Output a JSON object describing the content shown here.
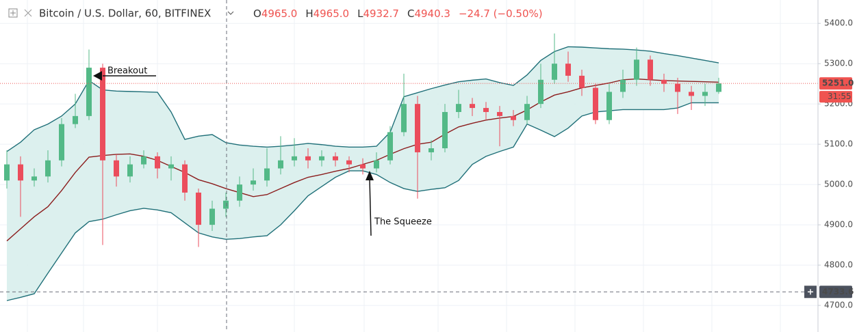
{
  "chart_data": {
    "type": "candlestick",
    "title": "Bitcoin / U.S. Dollar, 60, BITFINEX",
    "legend": [
      {
        "key": "O",
        "value": "4965.0"
      },
      {
        "key": "H",
        "value": "4965.0"
      },
      {
        "key": "L",
        "value": "4932.7"
      },
      {
        "key": "C",
        "value": "4940.3"
      }
    ],
    "change": "−24.7 (−0.50%)",
    "ylim": [
      4634,
      5458
    ],
    "yticks": [
      {
        "value": 4700,
        "label": "4700.0"
      },
      {
        "value": 4800,
        "label": "4800.0"
      },
      {
        "value": 4900,
        "label": "4900.0"
      },
      {
        "value": 5000,
        "label": "5000.0"
      },
      {
        "value": 5100,
        "label": "5100.0"
      },
      {
        "value": 5200,
        "label": "5200.0"
      },
      {
        "value": 5300,
        "label": "5300.0"
      },
      {
        "value": 5400,
        "label": "5400.0"
      }
    ],
    "grid": true,
    "up_color": "#53b987",
    "down_color": "#eb4d5c",
    "open": [
      5010,
      5050,
      5010,
      5020,
      5060,
      5150,
      5170,
      5290,
      5060,
      5020,
      5050,
      5070,
      5040,
      5050,
      4980,
      4900,
      4940,
      4960,
      5000,
      5010,
      5040,
      5060,
      5070,
      5060,
      5070,
      5060,
      5050,
      5040,
      5060,
      5130,
      5200,
      5080,
      5090,
      5180,
      5200,
      5190,
      5180,
      5170,
      5160,
      5200,
      5260,
      5300,
      5270,
      5240,
      5160,
      5230,
      5260,
      5310,
      5260,
      5250,
      5230,
      5220,
      5230
    ],
    "high": [
      5085,
      5070,
      5040,
      5085,
      5165,
      5225,
      5335,
      5300,
      5075,
      5070,
      5085,
      5080,
      5070,
      5060,
      4990,
      4960,
      4980,
      5020,
      5040,
      5090,
      5120,
      5115,
      5090,
      5085,
      5080,
      5070,
      5065,
      5080,
      5145,
      5275,
      5220,
      5110,
      5200,
      5235,
      5215,
      5205,
      5195,
      5185,
      5220,
      5300,
      5375,
      5330,
      5285,
      5250,
      5250,
      5285,
      5340,
      5320,
      5275,
      5265,
      5245,
      5250,
      5265
    ],
    "low": [
      4990,
      4920,
      4995,
      5005,
      5045,
      5140,
      5160,
      4850,
      4995,
      5005,
      5040,
      5015,
      5010,
      4960,
      4845,
      4885,
      4920,
      4945,
      4985,
      4995,
      5025,
      5045,
      5040,
      5045,
      5045,
      5030,
      5025,
      5030,
      5050,
      5120,
      4965,
      5060,
      5080,
      5165,
      5170,
      5160,
      5095,
      5145,
      5150,
      5190,
      5250,
      5255,
      5220,
      5150,
      5150,
      5215,
      5245,
      5245,
      5230,
      5175,
      5185,
      5195,
      5225
    ],
    "close": [
      5050,
      5010,
      5020,
      5060,
      5150,
      5170,
      5290,
      5060,
      5020,
      5050,
      5070,
      5040,
      5050,
      4980,
      4900,
      4940,
      4960,
      5000,
      5010,
      5040,
      5060,
      5070,
      5060,
      5070,
      5060,
      5050,
      5040,
      5060,
      5130,
      5200,
      5080,
      5090,
      5180,
      5200,
      5190,
      5180,
      5170,
      5160,
      5200,
      5260,
      5300,
      5270,
      5240,
      5160,
      5230,
      5260,
      5310,
      5260,
      5250,
      5230,
      5220,
      5230,
      5251
    ],
    "bands": {
      "fill": "#d8eeec",
      "band_color": "#1f6f78",
      "middle_color": "#8b1c1c",
      "upper": [
        5082,
        5105,
        5136,
        5150,
        5170,
        5200,
        5258,
        5235,
        5232,
        5231,
        5230,
        5229,
        5180,
        5112,
        5120,
        5124,
        5104,
        5098,
        5095,
        5093,
        5095,
        5098,
        5102,
        5099,
        5095,
        5093,
        5093,
        5095,
        5130,
        5218,
        5228,
        5238,
        5247,
        5255,
        5259,
        5262,
        5253,
        5246,
        5272,
        5308,
        5330,
        5342,
        5341,
        5339,
        5337,
        5336,
        5334,
        5331,
        5325,
        5320,
        5314,
        5308,
        5302
      ],
      "middle": [
        4860,
        4890,
        4920,
        4945,
        4985,
        5030,
        5068,
        5072,
        5075,
        5076,
        5070,
        5060,
        5045,
        5030,
        5012,
        5002,
        4990,
        4980,
        4970,
        4975,
        4990,
        5005,
        5018,
        5025,
        5033,
        5040,
        5050,
        5060,
        5075,
        5089,
        5100,
        5105,
        5125,
        5143,
        5152,
        5160,
        5165,
        5169,
        5185,
        5205,
        5222,
        5230,
        5240,
        5246,
        5252,
        5260,
        5262,
        5260,
        5258,
        5257,
        5256,
        5255,
        5254
      ],
      "lower": [
        4712,
        4720,
        4729,
        4780,
        4830,
        4880,
        4908,
        4914,
        4925,
        4935,
        4941,
        4937,
        4930,
        4905,
        4880,
        4870,
        4864,
        4866,
        4870,
        4873,
        4900,
        4935,
        4972,
        4995,
        5018,
        5034,
        5034,
        5025,
        5005,
        4990,
        4983,
        4988,
        4992,
        5010,
        5050,
        5070,
        5082,
        5093,
        5150,
        5135,
        5119,
        5140,
        5170,
        5180,
        5183,
        5186,
        5186,
        5186,
        5186,
        5190,
        5203,
        5203,
        5203
      ]
    },
    "last_price": {
      "value": 5251.0,
      "label": "5251.0",
      "color": "#ef5350"
    },
    "countdown": "31:55",
    "crosshair": {
      "value": 4733.6,
      "label": "4733.6"
    },
    "annotations": [
      "Breakout",
      "The Squeeze"
    ]
  }
}
